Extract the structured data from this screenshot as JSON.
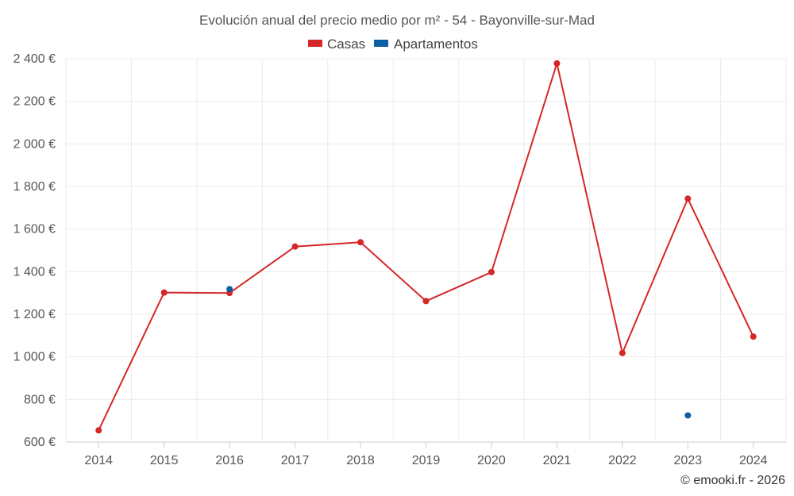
{
  "chart_data": {
    "type": "line",
    "title": "Evolución anual del precio medio por m² - 54 - Bayonville-sur-Mad",
    "categories": [
      "2014",
      "2015",
      "2016",
      "2017",
      "2018",
      "2019",
      "2020",
      "2021",
      "2022",
      "2023",
      "2024"
    ],
    "series": [
      {
        "name": "Casas",
        "color": "#d62728",
        "values": [
          655,
          1302,
          1300,
          1518,
          1538,
          1262,
          1398,
          2378,
          1018,
          1743,
          1095
        ]
      },
      {
        "name": "Apartamentos",
        "color": "#0b5fa5",
        "values": [
          null,
          null,
          1318,
          null,
          null,
          null,
          null,
          null,
          null,
          725,
          null
        ]
      }
    ],
    "ylim": [
      600,
      2400
    ],
    "yticks": [
      {
        "value": 600,
        "label": "600 €"
      },
      {
        "value": 800,
        "label": "800 €"
      },
      {
        "value": 1000,
        "label": "1 000 €"
      },
      {
        "value": 1200,
        "label": "1 200 €"
      },
      {
        "value": 1400,
        "label": "1 400 €"
      },
      {
        "value": 1600,
        "label": "1 600 €"
      },
      {
        "value": 1800,
        "label": "1 800 €"
      },
      {
        "value": 2000,
        "label": "2 000 €"
      },
      {
        "value": 2200,
        "label": "2 200 €"
      },
      {
        "value": 2400,
        "label": "2 400 €"
      }
    ],
    "grid": true,
    "legend_position": "top-center",
    "credit": "© emooki.fr - 2026"
  }
}
